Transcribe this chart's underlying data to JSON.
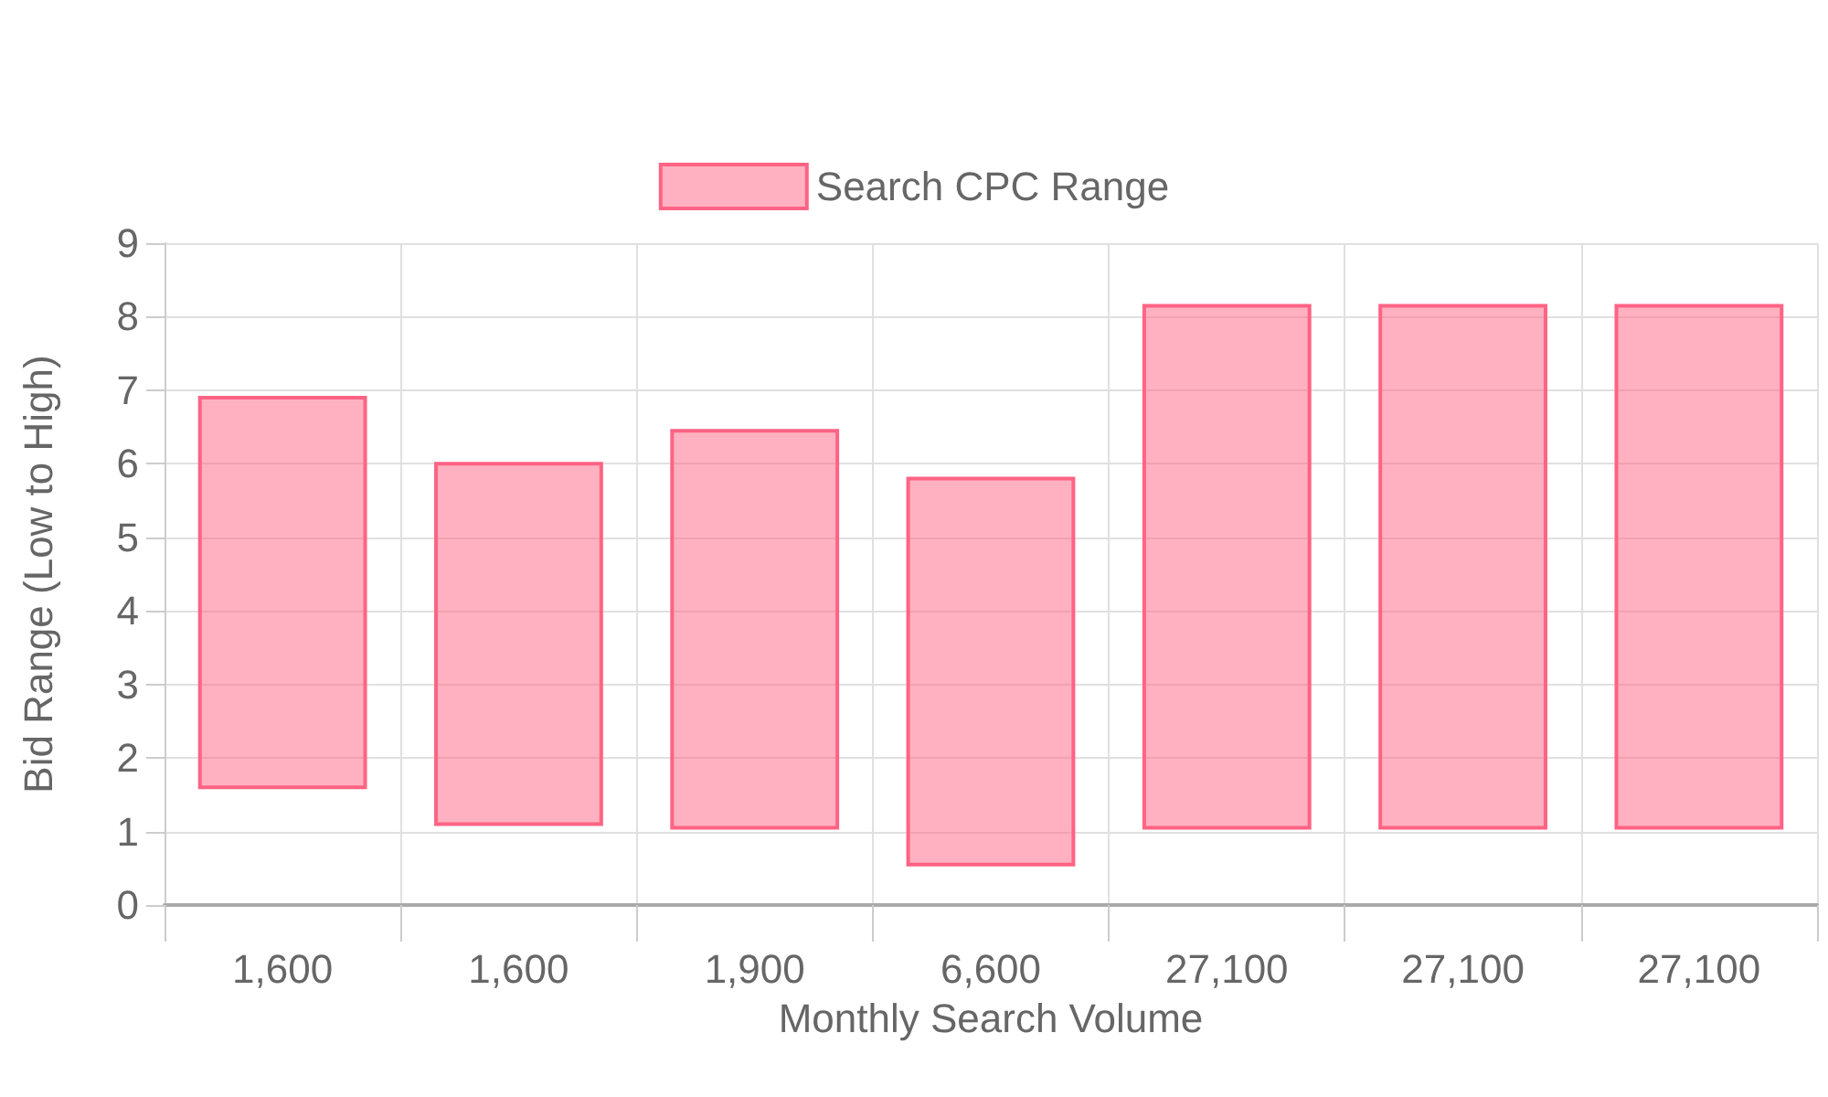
{
  "chart_data": {
    "type": "bar",
    "xlabel": "Monthly Search Volume",
    "ylabel": "Bid Range (Low to High)",
    "categories": [
      "1,600",
      "1,600",
      "1,900",
      "6,600",
      "27,100",
      "27,100",
      "27,100"
    ],
    "series": [
      {
        "name": "Search CPC Range",
        "color": "#ff6384",
        "values": [
          5.3,
          4.9,
          5.4,
          5.25,
          7.1,
          7.1,
          7.1
        ],
        "base": [
          1.6,
          1.1,
          1.05,
          0.55,
          1.05,
          1.05,
          1.05
        ]
      }
    ],
    "ylim": [
      0,
      9
    ],
    "yticks": [
      0,
      1,
      2,
      3,
      4,
      5,
      6,
      7,
      8,
      9
    ],
    "grid": true,
    "legend": "top"
  }
}
